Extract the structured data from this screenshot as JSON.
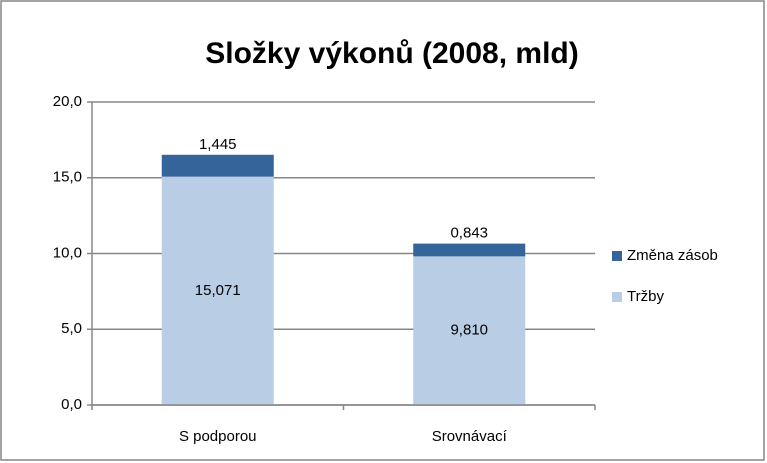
{
  "chart_data": {
    "type": "stacked_bar",
    "title": "Složky výkonů (2008, mld)",
    "categories": [
      "S podporou",
      "Srovnávací"
    ],
    "series": [
      {
        "name": "Tržby",
        "color": "#b9cde5",
        "values": [
          15.071,
          9.81
        ],
        "value_labels": [
          "15,071",
          "9,810"
        ]
      },
      {
        "name": "Změna zásob",
        "color": "#35649b",
        "values": [
          1.445,
          0.843
        ],
        "value_labels": [
          "1,445",
          "0,843"
        ]
      }
    ],
    "ylim": [
      0,
      20
    ],
    "yticks": [
      {
        "value": 0,
        "label": "0,0"
      },
      {
        "value": 5,
        "label": "5,0"
      },
      {
        "value": 10,
        "label": "10,0"
      },
      {
        "value": 15,
        "label": "15,0"
      },
      {
        "value": 20,
        "label": "20,0"
      }
    ],
    "grid": true,
    "legend": "right"
  }
}
